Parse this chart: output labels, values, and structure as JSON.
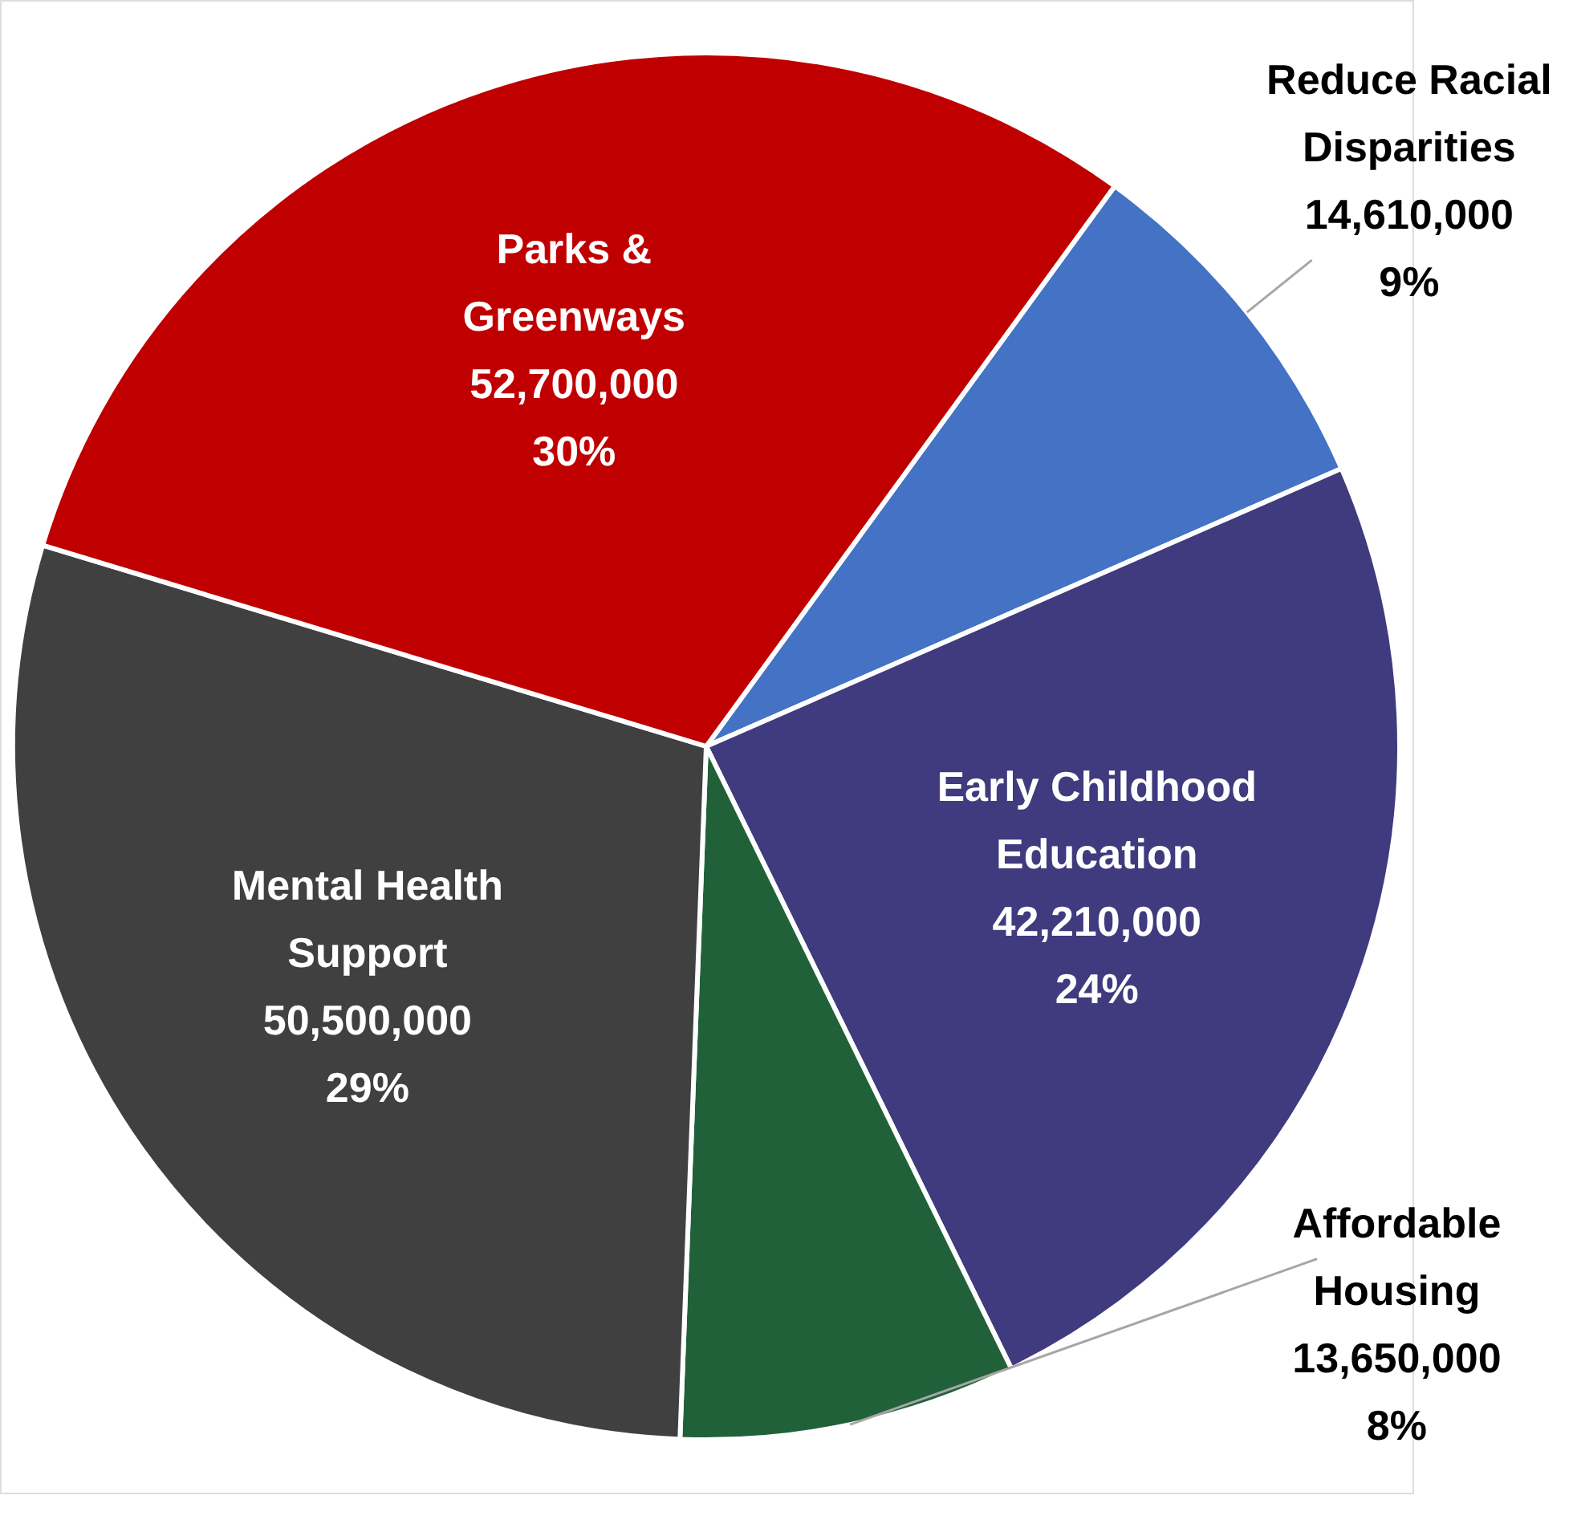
{
  "chart_data": {
    "type": "pie",
    "categories": [
      "Reduce Racial Disparities",
      "Early Childhood Education",
      "Affordable Housing",
      "Mental Health Support",
      "Parks & Greenways"
    ],
    "values": [
      14610000,
      42210000,
      13650000,
      50500000,
      52700000
    ],
    "value_labels": [
      "14,610,000\n9%",
      "42,210,000\n24%",
      "13,650,000\n8%",
      "50,500,000\n29%",
      "52,700,000\n30%"
    ],
    "colors": [
      "#4472c4",
      "#403a7e",
      "#21613a",
      "#404040",
      "#c00000"
    ],
    "legend": false
  }
}
